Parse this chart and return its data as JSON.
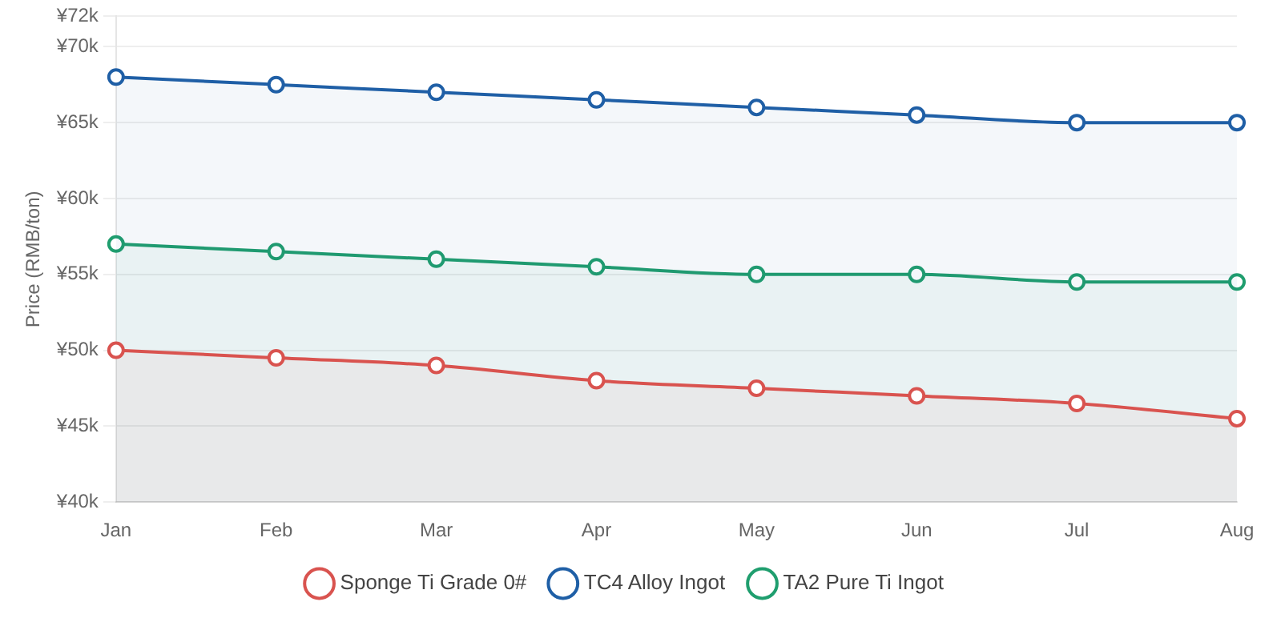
{
  "chart_data": {
    "type": "area",
    "ylabel": "Price (RMB/ton)",
    "categories": [
      "Jan",
      "Feb",
      "Mar",
      "Apr",
      "May",
      "Jun",
      "Jul",
      "Aug"
    ],
    "series": [
      {
        "name": "Sponge Ti Grade 0#",
        "color": "#d9534f",
        "values": [
          50000,
          49500,
          49000,
          48000,
          47500,
          47000,
          46500,
          45500
        ]
      },
      {
        "name": "TC4 Alloy Ingot",
        "color": "#1f5fa6",
        "values": [
          68000,
          67500,
          67000,
          66500,
          66000,
          65500,
          65000,
          65000
        ]
      },
      {
        "name": "TA2 Pure Ti Ingot",
        "color": "#1f9e6e",
        "values": [
          57000,
          56500,
          56000,
          55500,
          55000,
          55000,
          54500,
          54500
        ]
      }
    ],
    "ylim": [
      40000,
      72000
    ],
    "yticks": [
      {
        "value": 40000,
        "label": "¥40k"
      },
      {
        "value": 45000,
        "label": "¥45k"
      },
      {
        "value": 50000,
        "label": "¥50k"
      },
      {
        "value": 55000,
        "label": "¥55k"
      },
      {
        "value": 60000,
        "label": "¥60k"
      },
      {
        "value": 65000,
        "label": "¥65k"
      },
      {
        "value": 70000,
        "label": "¥70k"
      },
      {
        "value": 72000,
        "label": "¥72k"
      }
    ],
    "grid": "y",
    "legend": "bottom",
    "marker": "circle",
    "line_style": "solid"
  }
}
